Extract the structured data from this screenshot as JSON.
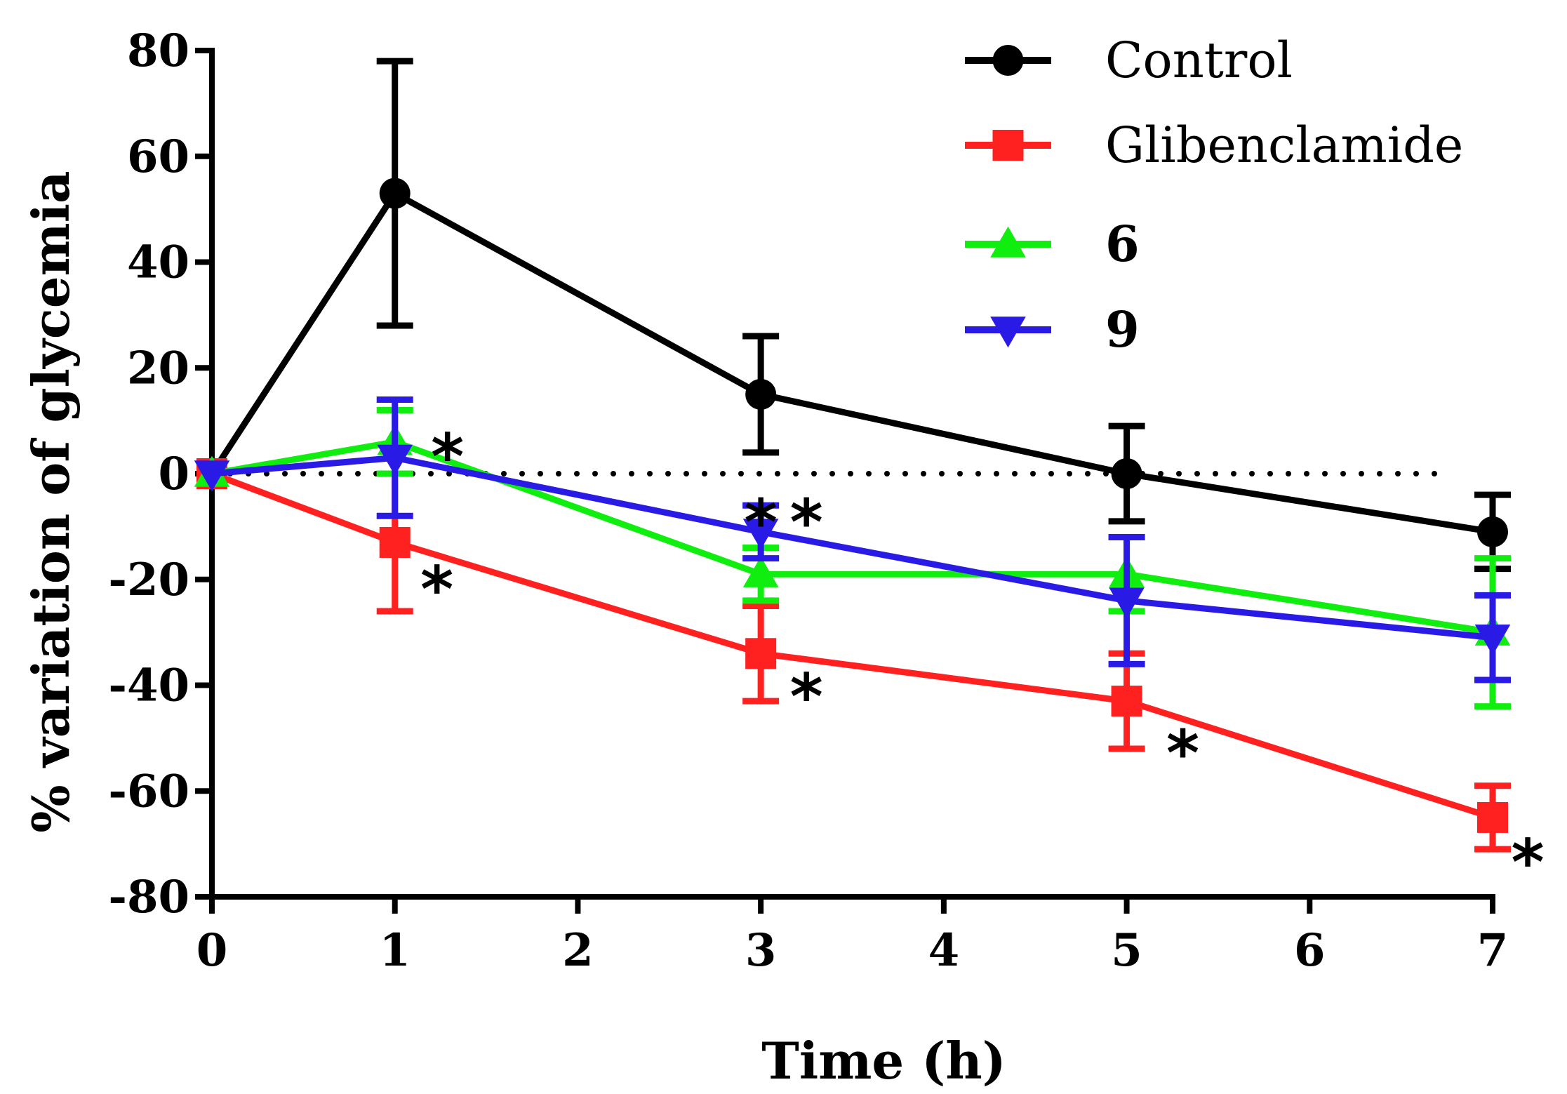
{
  "chart_data": {
    "type": "line",
    "title": "",
    "xlabel": "Time (h)",
    "ylabel": "% variation of glycemia",
    "xlim": [
      0,
      7
    ],
    "ylim": [
      -80,
      80
    ],
    "x_ticks": [
      0,
      1,
      2,
      3,
      4,
      5,
      6,
      7
    ],
    "y_ticks": [
      80,
      60,
      40,
      20,
      0,
      -20,
      -40,
      -60,
      -80
    ],
    "x_tick_labels": [
      "0",
      "1",
      "2",
      "3",
      "4",
      "5",
      "6",
      "7"
    ],
    "y_tick_labels": [
      "80",
      "60",
      "40",
      "20",
      "0",
      "-20",
      "-40",
      "-60",
      "-80"
    ],
    "reference_line": {
      "y": 0,
      "style": "dotted"
    },
    "legend_position": "top-right",
    "series": [
      {
        "name": "Control",
        "color": "#000000",
        "marker": "circle",
        "x": [
          0,
          1,
          3,
          5,
          7
        ],
        "values": [
          0,
          53,
          15,
          0,
          -11
        ],
        "errors": [
          0,
          25,
          11,
          9,
          7
        ]
      },
      {
        "name": "Glibenclamide",
        "color": "#ff2020",
        "marker": "square",
        "x": [
          0,
          1,
          3,
          5,
          7
        ],
        "values": [
          0,
          -13,
          -34,
          -43,
          -65
        ],
        "errors": [
          0,
          13,
          9,
          9,
          6
        ]
      },
      {
        "name": "6",
        "color": "#10ee10",
        "marker": "triangle-up",
        "x": [
          0,
          1,
          3,
          5,
          7
        ],
        "values": [
          0,
          6,
          -19,
          -19,
          -30
        ],
        "errors": [
          0,
          6,
          5,
          7,
          14
        ]
      },
      {
        "name": "9",
        "color": "#2a1ae6",
        "marker": "triangle-down",
        "x": [
          0,
          1,
          3,
          5,
          7
        ],
        "values": [
          0,
          3,
          -11,
          -24,
          -31
        ],
        "errors": [
          0,
          11,
          5,
          12,
          8
        ]
      }
    ],
    "annotations": [
      {
        "text": "*",
        "x": 1,
        "y": 7,
        "note": "series 6/9 at 1 h"
      },
      {
        "text": "*",
        "x": 1,
        "y": -20
      },
      {
        "text": "*",
        "x": 3,
        "y": -8
      },
      {
        "text": "*",
        "x": 3,
        "y": -8
      },
      {
        "text": "*",
        "x": 3,
        "y": -41
      },
      {
        "text": "*",
        "x": 5,
        "y": -51
      },
      {
        "text": "*",
        "x": 7,
        "y": -71
      }
    ]
  }
}
